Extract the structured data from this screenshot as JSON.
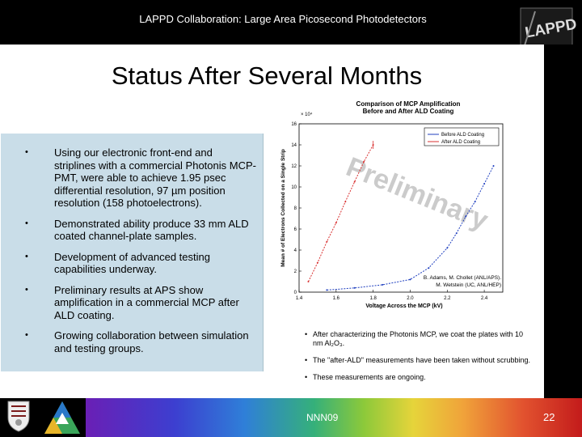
{
  "header": {
    "title": "LAPPD Collaboration: Large Area Picosecond Photodetectors",
    "logo_text": "LAPPD"
  },
  "slide": {
    "title": "Status After Several Months",
    "bullets": [
      "Using our electronic front-end and striplines with a commercial Photonis MCP-PMT, were able to achieve 1.95 psec differential resolution, 97 µm position resolution (158 photoelectrons).",
      "Demonstrated ability produce 33 mm ALD coated channel-plate samples.",
      "Development of advanced testing capabilities underway.",
      "Preliminary results at APS show amplification in a commercial MCP after ALD coating.",
      "Growing collaboration between simulation and testing groups."
    ],
    "bullet_marker": "•",
    "notes": [
      "After characterizing the Photonis MCP, we coat the plates with 10 nm Al₂O₃.",
      "The \"after-ALD\" measurements have been taken without scrubbing.",
      "These measurements are ongoing."
    ]
  },
  "chart_data": {
    "type": "line",
    "title": "Comparison of MCP Amplification Before and After ALD Coating",
    "xlabel": "Voltage Across the MCP (kV)",
    "ylabel": "Mean # of Electrons Collected on a Single Strip",
    "y_multiplier": "× 10⁴",
    "xlim": [
      1.4,
      2.5
    ],
    "ylim": [
      0,
      16
    ],
    "x_ticks": [
      "1.4",
      "1.6",
      "1.8",
      "2.0",
      "2.2",
      "2.4"
    ],
    "y_ticks": [
      "0",
      "2",
      "4",
      "6",
      "8",
      "10",
      "12",
      "14",
      "16"
    ],
    "series": [
      {
        "name": "Before ALD Coating",
        "color": "#1f3fbf",
        "x": [
          1.55,
          1.7,
          1.85,
          2.0,
          2.1,
          2.2,
          2.25,
          2.3,
          2.35,
          2.4,
          2.45
        ],
        "y": [
          0.2,
          0.4,
          0.7,
          1.2,
          2.3,
          4.2,
          5.6,
          7.2,
          8.6,
          10.3,
          12.0
        ]
      },
      {
        "name": "After ALD Coating",
        "color": "#d93030",
        "x": [
          1.45,
          1.5,
          1.55,
          1.6,
          1.65,
          1.7,
          1.75,
          1.8
        ],
        "y": [
          1.0,
          2.8,
          4.8,
          6.6,
          8.6,
          10.5,
          12.4,
          14.0
        ]
      }
    ],
    "watermark": "Preliminary",
    "credit": [
      "B. Adams, M. Chollet (ANL/APS).",
      "M. Wetstein (UC, ANL/HEP)"
    ],
    "legend_position": "top-right",
    "grid": false
  },
  "footer": {
    "code": "NNN09",
    "page": "22"
  }
}
